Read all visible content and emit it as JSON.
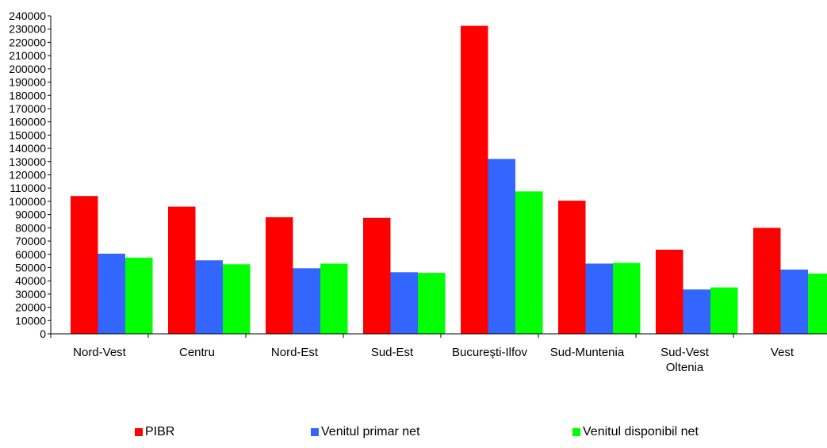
{
  "chart_data": {
    "type": "bar",
    "title": "",
    "xlabel": "",
    "ylabel": "",
    "ylim": [
      0,
      240000
    ],
    "ytick_step": 10000,
    "categories": [
      [
        "Nord-Vest"
      ],
      [
        "Centru"
      ],
      [
        "Nord-Est"
      ],
      [
        "Sud-Est"
      ],
      [
        "Bucureşti-Ilfov"
      ],
      [
        "Sud-Muntenia"
      ],
      [
        "Sud-Vest",
        "Oltenia"
      ],
      [
        "Vest"
      ]
    ],
    "series": [
      {
        "name": "PIBR",
        "color": "#ff0000",
        "values": [
          104000,
          96000,
          88000,
          87500,
          232500,
          100500,
          63500,
          80000
        ]
      },
      {
        "name": "Venitul primar net",
        "color": "#3366ff",
        "values": [
          60500,
          55500,
          49500,
          46500,
          132000,
          53000,
          33500,
          48500
        ]
      },
      {
        "name": "Venitul disponibil net",
        "color": "#00ff00",
        "values": [
          57500,
          52500,
          53000,
          46000,
          107500,
          53500,
          35000,
          45500
        ]
      }
    ],
    "legend_position": "bottom",
    "grid": false
  }
}
